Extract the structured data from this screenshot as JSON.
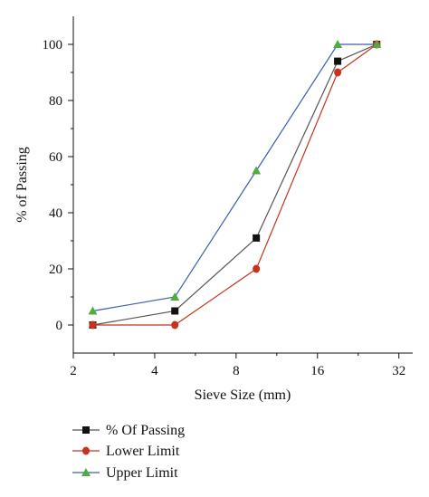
{
  "chart_data": {
    "type": "line",
    "xscale": "log2",
    "xlim": [
      2,
      36
    ],
    "ylim": [
      -10,
      110
    ],
    "xticks": [
      2,
      4,
      8,
      16,
      32
    ],
    "xtick_labels": [
      "2",
      "4",
      "8",
      "16",
      "32"
    ],
    "yticks": [
      0,
      20,
      40,
      60,
      80,
      100
    ],
    "ytick_labels": [
      "0",
      "20",
      "40",
      "60",
      "80",
      "100"
    ],
    "xlabel": "Sieve Size (mm)",
    "ylabel": "% of Passing",
    "grid": false,
    "legend_position": "bottom-left",
    "x": [
      2.36,
      4.75,
      9.5,
      19,
      26.5
    ],
    "series": [
      {
        "name": "% Of Passing",
        "values": [
          0,
          5,
          31,
          94,
          100
        ],
        "color": "#555555",
        "marker": "square",
        "marker_color": "#111111"
      },
      {
        "name": "Lower Limit",
        "values": [
          0,
          0,
          20,
          90,
          100
        ],
        "color": "#c8321e",
        "marker": "circle",
        "marker_color": "#c8321e"
      },
      {
        "name": "Upper Limit",
        "values": [
          5,
          10,
          55,
          100,
          100
        ],
        "color": "#3a5fb0",
        "marker": "triangle",
        "marker_color": "#4cae3c"
      }
    ]
  }
}
